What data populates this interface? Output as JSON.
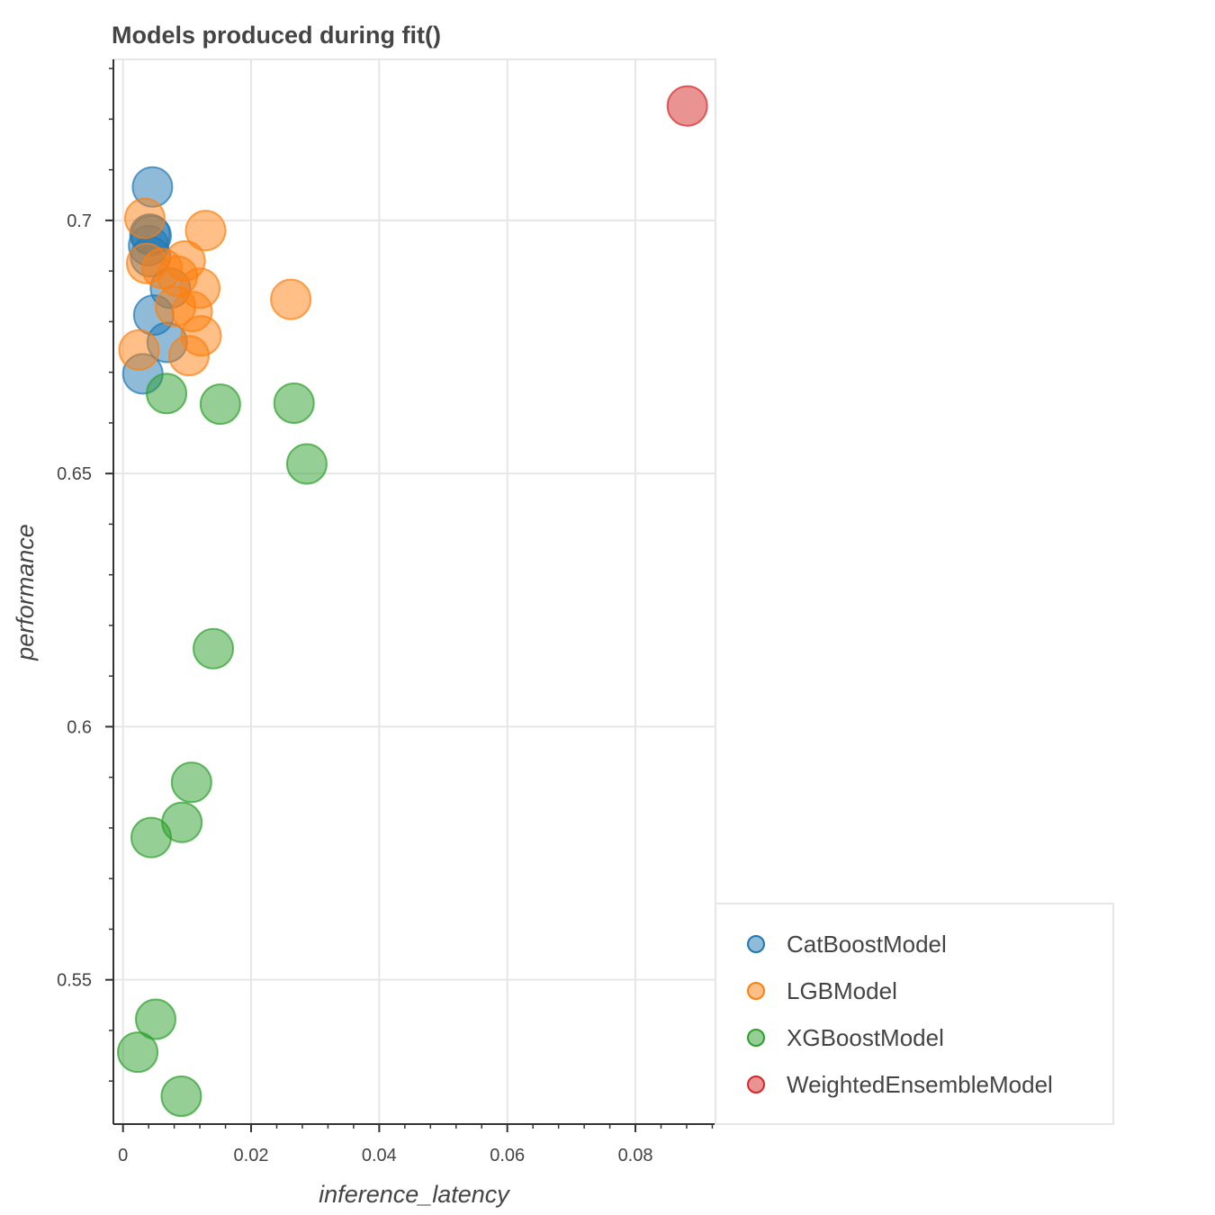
{
  "chart_data": {
    "type": "scatter",
    "title": "Models produced during fit()",
    "xlabel": "inference_latency",
    "ylabel": "performance",
    "xlim": [
      -0.0015,
      0.0925
    ],
    "ylim": [
      0.5215,
      0.7318
    ],
    "xticks": [
      {
        "value": 0,
        "label": "0"
      },
      {
        "value": 0.02,
        "label": "0.02"
      },
      {
        "value": 0.04,
        "label": "0.04"
      },
      {
        "value": 0.06,
        "label": "0.06"
      },
      {
        "value": 0.08,
        "label": "0.08"
      }
    ],
    "yticks": [
      {
        "value": 0.55,
        "label": "0.55"
      },
      {
        "value": 0.6,
        "label": "0.6"
      },
      {
        "value": 0.65,
        "label": "0.65"
      },
      {
        "value": 0.7,
        "label": "0.7"
      }
    ],
    "grid": true,
    "legend_position": "bottom-right outside",
    "series": [
      {
        "name": "CatBoostModel",
        "color": "#1f77b4",
        "points": [
          {
            "x": 0.0046,
            "y": 0.7066
          },
          {
            "x": 0.0042,
            "y": 0.6973
          },
          {
            "x": 0.0044,
            "y": 0.697
          },
          {
            "x": 0.004,
            "y": 0.695
          },
          {
            "x": 0.0043,
            "y": 0.6928
          },
          {
            "x": 0.0074,
            "y": 0.6866
          },
          {
            "x": 0.0048,
            "y": 0.6813
          },
          {
            "x": 0.0069,
            "y": 0.6759
          },
          {
            "x": 0.0031,
            "y": 0.6697
          }
        ]
      },
      {
        "name": "LGBModel",
        "color": "#ff7f0e",
        "points": [
          {
            "x": 0.0034,
            "y": 0.7004
          },
          {
            "x": 0.0129,
            "y": 0.698
          },
          {
            "x": 0.0037,
            "y": 0.6915
          },
          {
            "x": 0.0097,
            "y": 0.692
          },
          {
            "x": 0.0061,
            "y": 0.6905
          },
          {
            "x": 0.0085,
            "y": 0.689
          },
          {
            "x": 0.012,
            "y": 0.6866
          },
          {
            "x": 0.0082,
            "y": 0.683
          },
          {
            "x": 0.0108,
            "y": 0.682
          },
          {
            "x": 0.0262,
            "y": 0.6844
          },
          {
            "x": 0.0122,
            "y": 0.6772
          },
          {
            "x": 0.0025,
            "y": 0.6744
          },
          {
            "x": 0.0103,
            "y": 0.6733
          }
        ]
      },
      {
        "name": "XGBoostModel",
        "color": "#2ca02c",
        "points": [
          {
            "x": 0.0068,
            "y": 0.6658
          },
          {
            "x": 0.0152,
            "y": 0.6637
          },
          {
            "x": 0.0267,
            "y": 0.6639
          },
          {
            "x": 0.0287,
            "y": 0.6519
          },
          {
            "x": 0.0141,
            "y": 0.6154
          },
          {
            "x": 0.0107,
            "y": 0.589
          },
          {
            "x": 0.0092,
            "y": 0.5811
          },
          {
            "x": 0.0044,
            "y": 0.5781
          },
          {
            "x": 0.0051,
            "y": 0.5422
          },
          {
            "x": 0.0023,
            "y": 0.5357
          },
          {
            "x": 0.0091,
            "y": 0.527
          }
        ]
      },
      {
        "name": "WeightedEnsembleModel",
        "color": "#d62728",
        "points": [
          {
            "x": 0.0881,
            "y": 0.7226
          }
        ]
      }
    ]
  }
}
